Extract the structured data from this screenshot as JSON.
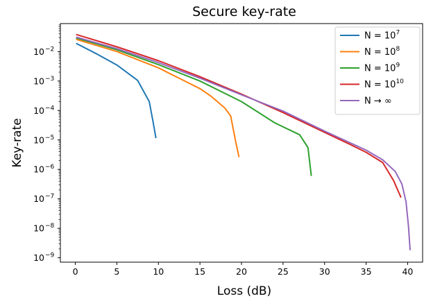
{
  "chart_data": {
    "type": "line",
    "title": "Secure key-rate",
    "xlabel": "Loss (dB)",
    "ylabel": "Key-rate",
    "xlim": [
      -1.8,
      41.8
    ],
    "ylim_log10": [
      -9.15,
      -1.05
    ],
    "x_ticks": [
      0,
      5,
      10,
      15,
      20,
      25,
      30,
      35,
      40
    ],
    "y_tick_exponents": [
      -9,
      -8,
      -7,
      -6,
      -5,
      -4,
      -3,
      -2
    ],
    "y_scale": "log",
    "legend_position": "top-right",
    "series": [
      {
        "name_base": "N = 10",
        "name_exp": "7",
        "color": "#1f77b4",
        "points": [
          [
            0.1,
            0.019
          ],
          [
            2.5,
            0.0085
          ],
          [
            5,
            0.0035
          ],
          [
            7.5,
            0.00105
          ],
          [
            8.9,
            0.0002
          ],
          [
            9.4,
            3.5e-05
          ],
          [
            9.7,
            1.15e-05
          ]
        ]
      },
      {
        "name_base": "N = 10",
        "name_exp": "8",
        "color": "#ff7f0e",
        "points": [
          [
            0.1,
            0.026
          ],
          [
            5,
            0.01
          ],
          [
            10,
            0.0028
          ],
          [
            15,
            0.00055
          ],
          [
            16.3,
            0.00031
          ],
          [
            18,
            0.00012
          ],
          [
            18.7,
            6.5e-05
          ],
          [
            19.3,
            8.8e-06
          ],
          [
            19.7,
            2.6e-06
          ]
        ]
      },
      {
        "name_base": "N = 10",
        "name_exp": "9",
        "color": "#2ca02c",
        "points": [
          [
            0.1,
            0.029
          ],
          [
            5,
            0.0115
          ],
          [
            10,
            0.0036
          ],
          [
            15,
            0.001
          ],
          [
            20,
            0.0002
          ],
          [
            24,
            3.8e-05
          ],
          [
            27,
            1.5e-05
          ],
          [
            28,
            5.5e-06
          ],
          [
            28.4,
            6e-07
          ]
        ]
      },
      {
        "name_base": "N = 10",
        "name_exp": "10",
        "color": "#d62728",
        "points": [
          [
            0.1,
            0.038
          ],
          [
            5,
            0.0145
          ],
          [
            10,
            0.0049
          ],
          [
            15,
            0.0014
          ],
          [
            20,
            0.00036
          ],
          [
            25,
            8.5e-05
          ],
          [
            30,
            1.8e-05
          ],
          [
            33,
            7.2e-06
          ],
          [
            35,
            3.8e-06
          ],
          [
            37,
            1.7e-06
          ],
          [
            38.3,
            4.2e-07
          ],
          [
            39.2,
            1.1e-07
          ]
        ]
      },
      {
        "name_base": "N → ∞",
        "name_exp": "",
        "color": "#9467bd",
        "points": [
          [
            0.1,
            0.031
          ],
          [
            5,
            0.0125
          ],
          [
            10,
            0.0042
          ],
          [
            15,
            0.00125
          ],
          [
            20,
            0.00034
          ],
          [
            25,
            9.5e-05
          ],
          [
            30,
            2e-05
          ],
          [
            35,
            4.5e-06
          ],
          [
            37,
            2.1e-06
          ],
          [
            38.5,
            8.5e-07
          ],
          [
            39.3,
            3.2e-07
          ],
          [
            39.8,
            8e-08
          ],
          [
            40.1,
            1.2e-08
          ],
          [
            40.3,
            1.8e-09
          ]
        ]
      }
    ]
  }
}
